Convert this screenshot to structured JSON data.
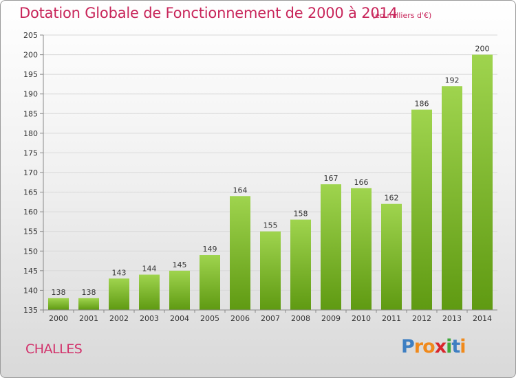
{
  "title": "Dotation Globale de Fonctionnement de 2000 à 2014",
  "unit_note": "(en milliers d'€)",
  "commune": "CHALLES",
  "logo": {
    "text": "Proxiti",
    "letters": [
      "P",
      "r",
      "o",
      "x",
      "i",
      "t",
      "i"
    ],
    "colors": [
      "#3e7fc2",
      "#f08a1c",
      "#f08a1c",
      "#d8262c",
      "#3fa83a",
      "#3e7fc2",
      "#f08a1c"
    ]
  },
  "colors": {
    "title": "#c8255a",
    "bar_top": "#9fd44e",
    "bar_bottom": "#5f9a12"
  },
  "chart_data": {
    "type": "bar",
    "title": "Dotation Globale de Fonctionnement de 2000 à 2014",
    "subtitle": "(en milliers d'€)",
    "categories": [
      "2000",
      "2001",
      "2002",
      "2003",
      "2004",
      "2005",
      "2006",
      "2007",
      "2008",
      "2009",
      "2010",
      "2011",
      "2012",
      "2013",
      "2014"
    ],
    "values": [
      138,
      138,
      143,
      144,
      145,
      149,
      164,
      155,
      158,
      167,
      166,
      162,
      186,
      192,
      200
    ],
    "ylim": [
      135,
      205
    ],
    "yticks": [
      135,
      140,
      145,
      150,
      155,
      160,
      165,
      170,
      175,
      180,
      185,
      190,
      195,
      200,
      205
    ],
    "grid": true
  }
}
